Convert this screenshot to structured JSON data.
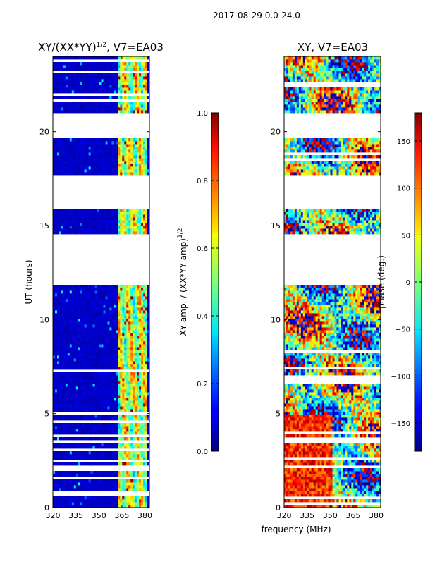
{
  "chart_data": {
    "type": "heatmap",
    "suptitle": "2017-08-29 0.0-24.0",
    "shared_xlabel": "frequency (MHz)",
    "panels": [
      {
        "id": "amp",
        "title": "XY/(XX*YY)^1/2, V7=EA03",
        "title_main": "XY/(XX*YY)",
        "title_exp": "1/2",
        "title_tail": ", V7=EA03",
        "ylabel": "UT (hours)",
        "xlim": [
          320,
          383
        ],
        "ylim": [
          0,
          24
        ],
        "xticks": [
          "320",
          "335",
          "350",
          "365",
          "380"
        ],
        "xtick_values": [
          320,
          335,
          350,
          365,
          380
        ],
        "yticks": [
          "0",
          "5",
          "10",
          "15",
          "20"
        ],
        "ytick_values": [
          0,
          5,
          10,
          15,
          20
        ],
        "colorbar": {
          "label_main": "XY amp. / (XX*YY amp)",
          "label_exp": "1/2",
          "range": [
            0.0,
            1.0
          ],
          "ticks": [
            "0.0",
            "0.2",
            "0.4",
            "0.6",
            "0.8",
            "1.0"
          ],
          "tick_values": [
            0.0,
            0.2,
            0.4,
            0.6,
            0.8,
            1.0
          ]
        },
        "gaps_hours": [
          [
            19.65,
            21.0
          ],
          [
            15.9,
            17.7
          ],
          [
            11.9,
            14.6
          ],
          [
            3.5,
            3.65
          ]
        ],
        "description": "mostly ~0.05 (dark blue) at 320-360 MHz; bright 0.4-0.8 stripes near 360-380 MHz"
      },
      {
        "id": "phase",
        "title": "XY, V7=EA03",
        "ylabel": "",
        "xlim": [
          320,
          383
        ],
        "ylim": [
          0,
          24
        ],
        "xticks": [
          "320",
          "335",
          "350",
          "365",
          "380"
        ],
        "xtick_values": [
          320,
          335,
          350,
          365,
          380
        ],
        "yticks": [
          "0",
          "5",
          "10",
          "15",
          "20"
        ],
        "ytick_values": [
          0,
          5,
          10,
          15,
          20
        ],
        "colorbar": {
          "label": "phase (deg.)",
          "range": [
            -180,
            180
          ],
          "ticks": [
            "−150",
            "−100",
            "−50",
            "0",
            "50",
            "100",
            "150"
          ],
          "tick_values": [
            -150,
            -100,
            -50,
            0,
            50,
            100,
            150
          ]
        },
        "gaps_hours": [
          [
            19.65,
            21.0
          ],
          [
            15.9,
            17.7
          ],
          [
            11.9,
            14.6
          ],
          [
            3.5,
            3.65
          ]
        ],
        "description": "phase spans full -180..180 range with noisy structure"
      }
    ]
  }
}
